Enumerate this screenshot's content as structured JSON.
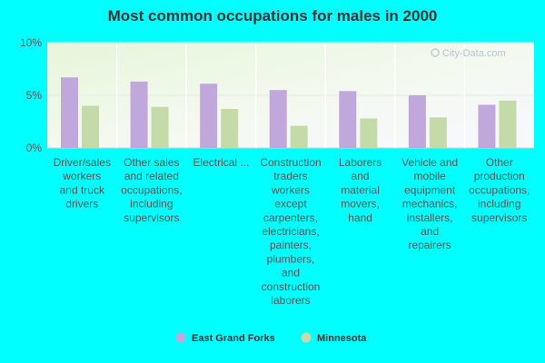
{
  "chart_data": {
    "type": "bar",
    "title": "Most common occupations for males in 2000",
    "xlabel": "",
    "ylabel": "",
    "ylim": [
      0,
      10
    ],
    "yticks": [
      "0%",
      "5%",
      "10%"
    ],
    "categories": [
      [
        "Driver/sales",
        "workers",
        "and truck",
        "drivers"
      ],
      [
        "Other sales",
        "and related",
        "occupations,",
        "including",
        "supervisors"
      ],
      [
        "Electrical ..."
      ],
      [
        "Construction",
        "traders",
        "workers",
        "except",
        "carpenters,",
        "electricians,",
        "painters,",
        "plumbers,",
        "and",
        "construction",
        "laborers"
      ],
      [
        "Laborers",
        "and",
        "material",
        "movers,",
        "hand"
      ],
      [
        "Vehicle and",
        "mobile",
        "equipment",
        "mechanics,",
        "installers,",
        "and",
        "repairers"
      ],
      [
        "Other",
        "production",
        "occupations,",
        "including",
        "supervisors"
      ]
    ],
    "series": [
      {
        "name": "East Grand Forks",
        "color": "#c0a8dc",
        "values": [
          6.7,
          6.3,
          6.1,
          5.5,
          5.4,
          5.0,
          4.1
        ]
      },
      {
        "name": "Minnesota",
        "color": "#c4daa8",
        "values": [
          4.0,
          3.9,
          3.7,
          2.1,
          2.8,
          2.9,
          4.5
        ]
      }
    ],
    "grid": true,
    "legend": "bottom-center"
  },
  "watermark": "City-Data.com"
}
